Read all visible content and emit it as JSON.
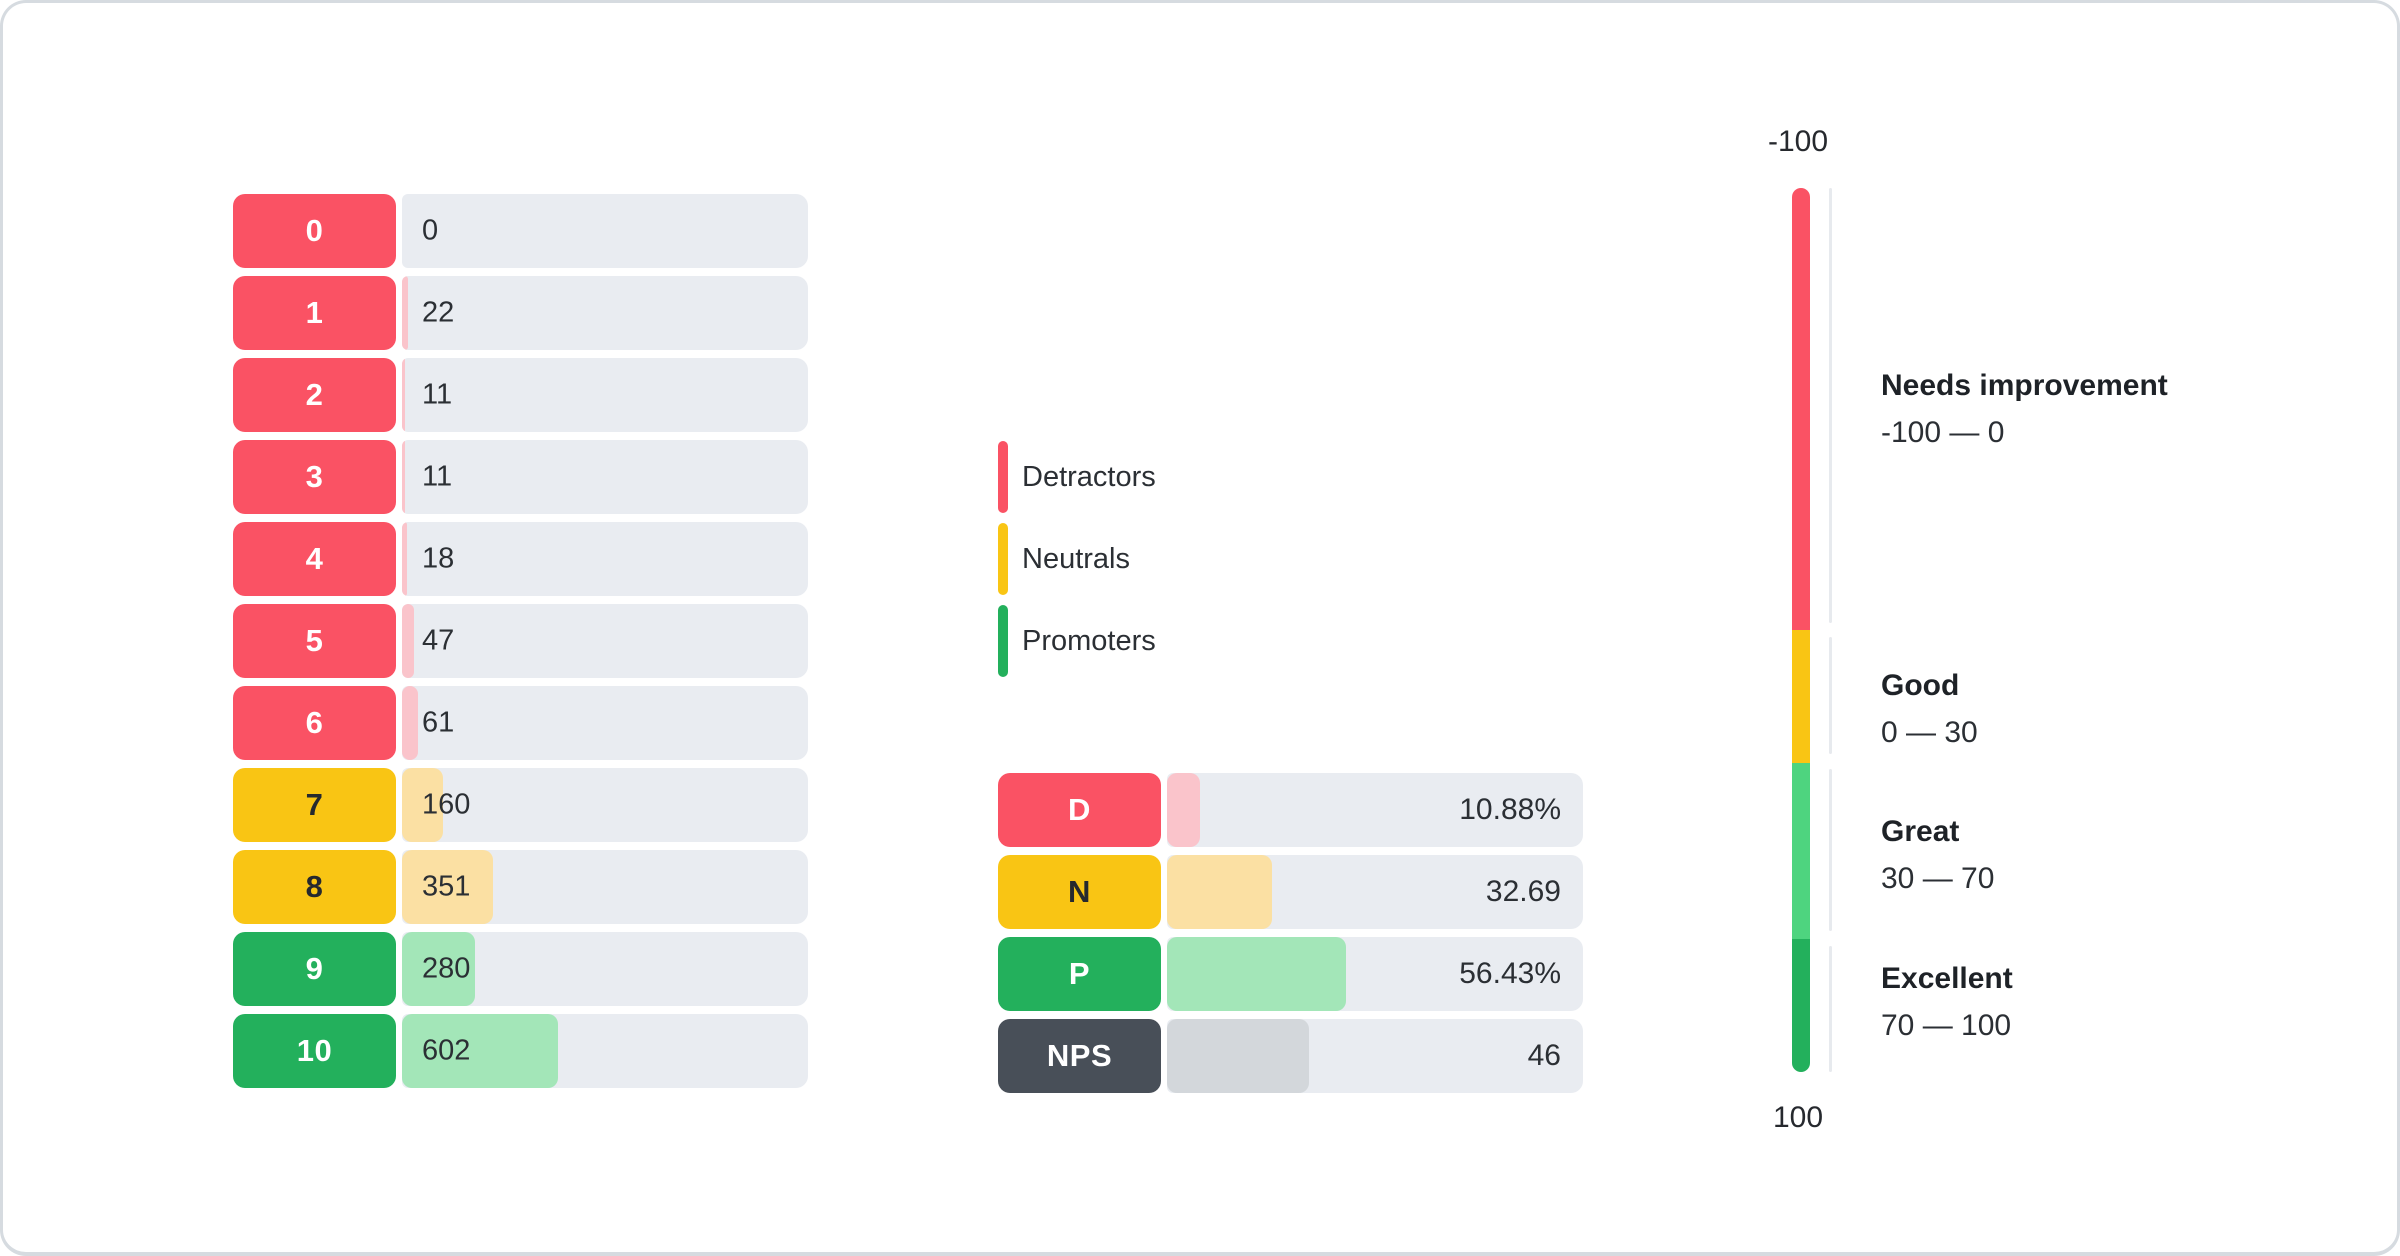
{
  "colors": {
    "detractor": "#FA5264",
    "detractor_light": "#FAC4CB",
    "neutral": "#F9C514",
    "neutral_light": "#FBE0A3",
    "promoter": "#23B05C",
    "promoter_light": "#A3E6B8",
    "gauge_great": "#4ED47F",
    "nps_chip": "#484F58",
    "nps_fill": "#D3D7DB",
    "track": "#E9ECF1"
  },
  "chart_data": [
    {
      "type": "bar",
      "orientation": "horizontal",
      "categories": [
        "0",
        "1",
        "2",
        "3",
        "4",
        "5",
        "6",
        "7",
        "8",
        "9",
        "10"
      ],
      "values": [
        0,
        22,
        11,
        11,
        18,
        47,
        61,
        160,
        351,
        280,
        602
      ],
      "series_note": "responses per NPS score; 0-6 detractors (red), 7-8 neutrals (yellow), 9-10 promoters (green)",
      "xlim": [
        0,
        1563
      ]
    },
    {
      "type": "bar",
      "orientation": "horizontal",
      "categories": [
        "D",
        "N",
        "P",
        "NPS"
      ],
      "values": [
        10.88,
        32.69,
        56.43,
        46
      ],
      "value_labels": [
        "10.88%",
        "32.69",
        "56.43%",
        "46"
      ]
    },
    {
      "type": "gauge",
      "orientation": "vertical",
      "axis_range": [
        -100,
        100
      ],
      "bands": [
        {
          "label": "Needs improvement",
          "from": -100,
          "to": 0
        },
        {
          "label": "Good",
          "from": 0,
          "to": 30
        },
        {
          "label": "Great",
          "from": 30,
          "to": 70
        },
        {
          "label": "Excellent",
          "from": 70,
          "to": 100
        }
      ]
    }
  ],
  "scores": {
    "rows": [
      {
        "label": "0",
        "value": "0",
        "fill_width": "0%"
      },
      {
        "label": "1",
        "value": "22",
        "fill_width": "1.41%"
      },
      {
        "label": "2",
        "value": "11",
        "fill_width": "0.7%"
      },
      {
        "label": "3",
        "value": "11",
        "fill_width": "0.7%"
      },
      {
        "label": "4",
        "value": "18",
        "fill_width": "1.15%"
      },
      {
        "label": "5",
        "value": "47",
        "fill_width": "3.0%"
      },
      {
        "label": "6",
        "value": "61",
        "fill_width": "3.9%"
      },
      {
        "label": "7",
        "value": "160",
        "fill_width": "10.2%"
      },
      {
        "label": "8",
        "value": "351",
        "fill_width": "22.5%"
      },
      {
        "label": "9",
        "value": "280",
        "fill_width": "17.9%"
      },
      {
        "label": "10",
        "value": "602",
        "fill_width": "38.5%"
      }
    ]
  },
  "legend": {
    "items": [
      {
        "label": "Detractors"
      },
      {
        "label": "Neutrals"
      },
      {
        "label": "Promoters"
      }
    ]
  },
  "summary": {
    "rows": [
      {
        "label": "D",
        "value": "10.88%",
        "fill_width": "8.0%"
      },
      {
        "label": "N",
        "value": "32.69",
        "fill_width": "25.2%"
      },
      {
        "label": "P",
        "value": "56.43%",
        "fill_width": "43.0%"
      },
      {
        "label": "NPS",
        "value": "46",
        "fill_width": "34.2%"
      }
    ]
  },
  "gauge": {
    "axis_top": "-100",
    "axis_bottom": "100",
    "ranges": [
      {
        "title": "Needs improvement",
        "range": "-100 — 0"
      },
      {
        "title": "Good",
        "range": "0 — 30"
      },
      {
        "title": "Great",
        "range": "30 — 70"
      },
      {
        "title": "Excellent",
        "range": "70 — 100"
      }
    ]
  }
}
